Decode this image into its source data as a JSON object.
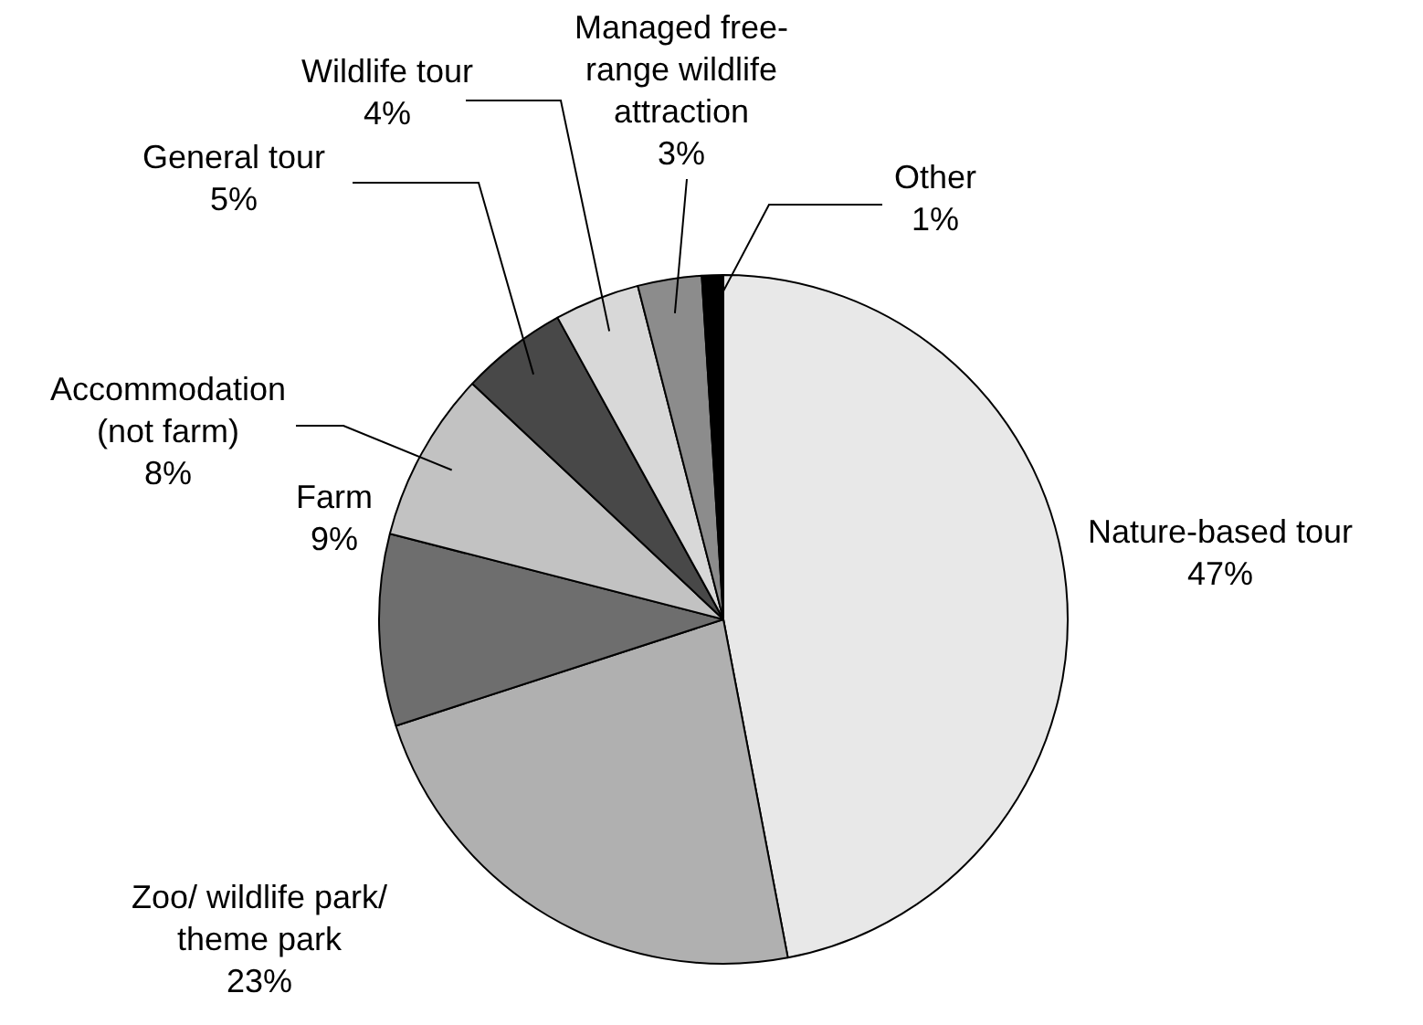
{
  "chart_data": {
    "type": "pie",
    "categories": [
      "Nature-based tour",
      "Zoo/ wildlife park/ theme park",
      "Farm",
      "Accommodation (not farm)",
      "General tour",
      "Wildlife tour",
      "Managed free-range wildlife attraction",
      "Other"
    ],
    "values": [
      47,
      23,
      9,
      8,
      5,
      4,
      3,
      1
    ],
    "colors": [
      "#e8e8e8",
      "#b0b0b0",
      "#6e6e6e",
      "#c2c2c2",
      "#484848",
      "#d8d8d8",
      "#8c8c8c",
      "#000000"
    ],
    "value_labels": [
      "47%",
      "23%",
      "9%",
      "8%",
      "5%",
      "4%",
      "3%",
      "1%"
    ],
    "legend": false
  }
}
